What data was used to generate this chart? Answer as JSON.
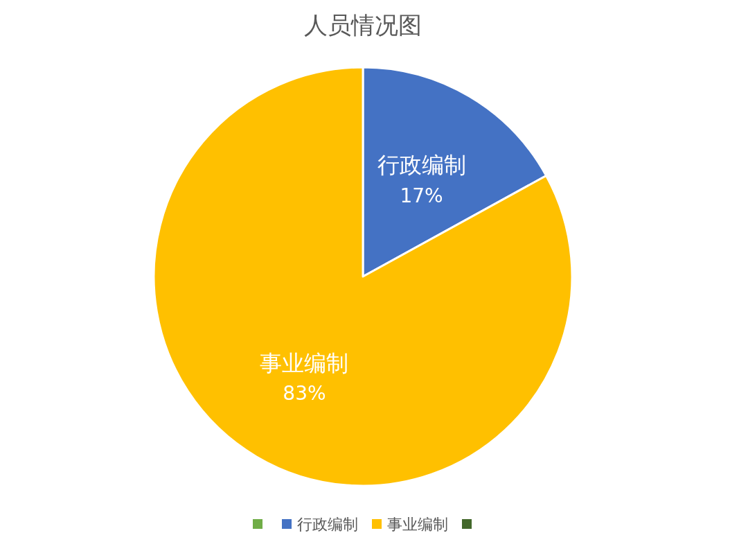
{
  "chart_data": {
    "type": "pie",
    "title": "人员情况图",
    "categories": [
      null,
      "行政编制",
      "事业编制",
      null
    ],
    "values": [
      0,
      17,
      83,
      0
    ],
    "colors": [
      "#70ad47",
      "#4472c4",
      "#ffc000",
      "#43682b"
    ],
    "value_labels": [
      null,
      "17%",
      "83%",
      null
    ],
    "legend": "bottom"
  }
}
